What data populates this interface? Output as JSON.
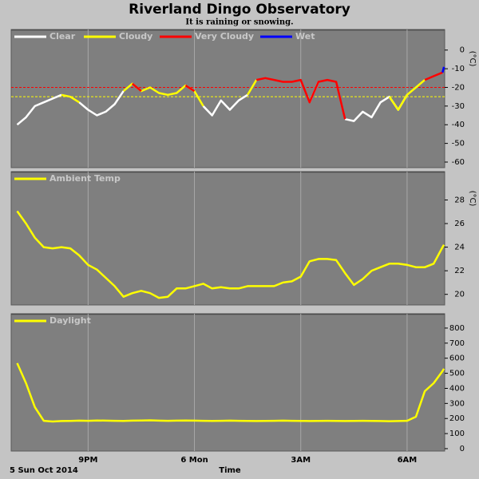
{
  "title": "Riverland Dingo Observatory",
  "subtitle": "It is raining or snowing.",
  "date_label": "5 Sun Oct 2014",
  "x_label": "Time",
  "chart_data": [
    {
      "type": "line",
      "x": [
        19,
        19.25,
        19.5,
        19.75,
        20,
        20.25,
        20.5,
        20.75,
        21,
        21.25,
        21.5,
        21.75,
        22,
        22.25,
        22.5,
        22.75,
        23,
        23.25,
        23.5,
        23.75,
        24,
        24.25,
        24.5,
        24.75,
        25,
        25.25,
        25.5,
        25.75,
        26,
        26.25,
        26.5,
        26.75,
        27,
        27.25,
        27.5,
        27.75,
        28,
        28.25,
        28.5,
        28.75,
        29,
        29.25,
        29.5,
        29.75,
        30,
        30.25,
        30.5,
        30.75,
        31,
        31.04
      ],
      "xlim": [
        18.83,
        31.06
      ],
      "xticks": [
        21,
        24,
        27,
        30
      ],
      "ylim": [
        -63,
        11
      ],
      "yticks": [
        0,
        -10,
        -20,
        -30,
        -40,
        -50,
        -60
      ],
      "y_label": "(°C)",
      "reference_lines": [
        {
          "value": -20,
          "color": "#ff0000"
        },
        {
          "value": -25,
          "color": "#ffff00"
        }
      ],
      "legend": "upper left",
      "series": [
        {
          "name": "Clear",
          "color": "#ffffff",
          "values": [
            -40,
            -36,
            -30,
            -28,
            -26,
            -24,
            null,
            -28,
            -32,
            -35,
            -33,
            -29,
            -22,
            null,
            null,
            null,
            null,
            null,
            null,
            null,
            null,
            -30,
            -35,
            -27,
            -32,
            -27,
            -24,
            null,
            null,
            null,
            null,
            null,
            null,
            -28,
            -17,
            null,
            null,
            -37,
            -38,
            -33,
            -36,
            -28,
            -25,
            -32,
            -24,
            null,
            null,
            null,
            null,
            null
          ]
        },
        {
          "name": "Cloudy",
          "color": "#ffff00",
          "values": [
            null,
            null,
            null,
            null,
            null,
            -24,
            -25,
            -28,
            null,
            null,
            null,
            null,
            -22,
            -18,
            -22,
            -20,
            -23,
            -24,
            -23,
            -19,
            -22,
            -30,
            null,
            null,
            null,
            null,
            -24,
            -16,
            null,
            null,
            null,
            null,
            null,
            null,
            null,
            null,
            null,
            null,
            null,
            null,
            null,
            null,
            -25,
            -32,
            -24,
            -20,
            -16,
            null,
            null,
            null
          ]
        },
        {
          "name": "Very Cloudy",
          "color": "#ff0000",
          "values": [
            null,
            null,
            null,
            null,
            null,
            null,
            null,
            null,
            null,
            null,
            null,
            null,
            null,
            -18,
            -22,
            null,
            null,
            null,
            null,
            -19,
            -22,
            null,
            null,
            null,
            null,
            null,
            null,
            -16,
            -15,
            -16,
            -17,
            -17,
            -16,
            -28,
            -17,
            -16,
            -17,
            -37,
            null,
            null,
            null,
            null,
            null,
            null,
            null,
            null,
            -16,
            -14,
            -12,
            null
          ]
        },
        {
          "name": "Wet",
          "color": "#0000ff",
          "values": [
            null,
            null,
            null,
            null,
            null,
            null,
            null,
            null,
            null,
            null,
            null,
            null,
            null,
            null,
            null,
            null,
            null,
            null,
            null,
            null,
            null,
            null,
            null,
            null,
            null,
            null,
            null,
            null,
            null,
            null,
            null,
            null,
            null,
            null,
            null,
            null,
            null,
            null,
            null,
            null,
            null,
            null,
            null,
            null,
            null,
            null,
            null,
            null,
            -12,
            -9
          ]
        }
      ]
    },
    {
      "type": "line",
      "x": [
        19,
        19.25,
        19.5,
        19.75,
        20,
        20.25,
        20.5,
        20.75,
        21,
        21.25,
        21.5,
        21.75,
        22,
        22.25,
        22.5,
        22.75,
        23,
        23.25,
        23.5,
        23.75,
        24,
        24.25,
        24.5,
        24.75,
        25,
        25.25,
        25.5,
        25.75,
        26,
        26.25,
        26.5,
        26.75,
        27,
        27.25,
        27.5,
        27.75,
        28,
        28.25,
        28.5,
        28.75,
        29,
        29.25,
        29.5,
        29.75,
        30,
        30.25,
        30.5,
        30.75,
        31,
        31.04
      ],
      "xlim": [
        18.83,
        31.06
      ],
      "xticks": [
        21,
        24,
        27,
        30
      ],
      "ylim": [
        19.1,
        30.4
      ],
      "yticks": [
        20,
        22,
        24,
        26,
        28
      ],
      "y_label": "(°C)",
      "legend": "upper left",
      "series": [
        {
          "name": "Ambient Temp",
          "color": "#ffff00",
          "values": [
            27.05,
            26.0,
            24.8,
            24.0,
            23.9,
            24.0,
            23.9,
            23.3,
            22.5,
            22.1,
            21.4,
            20.7,
            19.8,
            20.1,
            20.3,
            20.1,
            19.7,
            19.8,
            20.5,
            20.5,
            20.7,
            20.9,
            20.5,
            20.6,
            20.5,
            20.5,
            20.7,
            20.7,
            20.7,
            20.7,
            21.0,
            21.1,
            21.5,
            22.8,
            23.0,
            23.0,
            22.9,
            21.8,
            20.8,
            21.3,
            22.0,
            22.3,
            22.6,
            22.6,
            22.5,
            22.3,
            22.3,
            22.6,
            24.0,
            24.2
          ]
        }
      ]
    },
    {
      "type": "line",
      "x": [
        19,
        19.25,
        19.5,
        19.75,
        20,
        20.25,
        20.5,
        20.75,
        21,
        21.25,
        21.5,
        21.75,
        22,
        22.25,
        22.5,
        22.75,
        23,
        23.25,
        23.5,
        23.75,
        24,
        24.25,
        24.5,
        24.75,
        25,
        25.25,
        25.5,
        25.75,
        26,
        26.25,
        26.5,
        26.75,
        27,
        27.25,
        27.5,
        27.75,
        28,
        28.25,
        28.5,
        28.75,
        29,
        29.25,
        29.5,
        29.75,
        30,
        30.25,
        30.5,
        30.75,
        31,
        31.04
      ],
      "xlim": [
        18.83,
        31.06
      ],
      "xticks": [
        {
          "value": 21,
          "label": "9PM"
        },
        {
          "value": 24,
          "label": "6 Mon"
        },
        {
          "value": 27,
          "label": "3AM"
        },
        {
          "value": 30,
          "label": "6AM"
        }
      ],
      "ylim": [
        -16,
        895
      ],
      "yticks": [
        0,
        100,
        200,
        300,
        400,
        500,
        600,
        700,
        800
      ],
      "legend": "upper left",
      "series": [
        {
          "name": "Daylight",
          "color": "#ffff00",
          "values": [
            567,
            434,
            275,
            185,
            180,
            183,
            184,
            186,
            185,
            187,
            186,
            185,
            184,
            186,
            187,
            188,
            186,
            185,
            186,
            187,
            186,
            185,
            184,
            185,
            186,
            185,
            184,
            183,
            184,
            185,
            186,
            185,
            184,
            183,
            184,
            185,
            184,
            183,
            184,
            185,
            184,
            183,
            182,
            183,
            185,
            212,
            381,
            434,
            514,
            530
          ]
        }
      ]
    }
  ]
}
